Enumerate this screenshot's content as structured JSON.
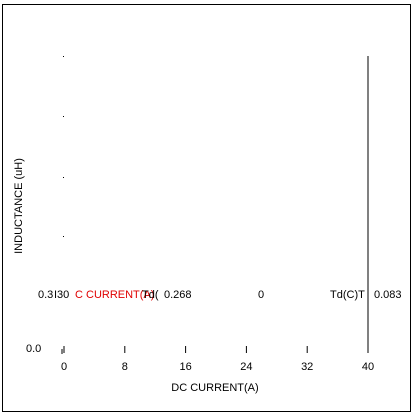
{
  "chart_data": {
    "type": "line",
    "xlabel": "DC CURRENT(A)",
    "ylabel": "INDUCTANCE (uH)",
    "x_ticks": [
      "0",
      "8",
      "16",
      "24",
      "32",
      "40"
    ],
    "y_ticks": [
      "0.0",
      "0.3"
    ],
    "xlim": [
      0,
      40
    ],
    "vertical_line_at_x": 40,
    "overlay_labels": {
      "y_value": "0.3",
      "leading": "I30",
      "red_label": "C CURRENT(A)",
      "td_left": "Td(",
      "td_left_value": "0.268",
      "mid_value": "0",
      "td_right": "Td(C)T",
      "td_right_value": "0.083"
    }
  },
  "colors": {
    "accent_red": "#e00000",
    "axis": "#000000"
  }
}
